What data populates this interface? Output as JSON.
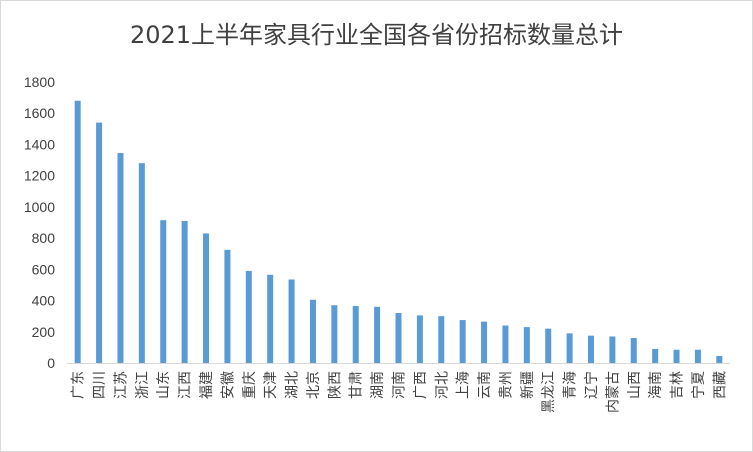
{
  "chart_data": {
    "type": "bar",
    "title": "2021上半年家具行业全国各省份招标数量总计",
    "xlabel": "",
    "ylabel": "",
    "ylim": [
      0,
      1800
    ],
    "yticks": [
      0,
      200,
      400,
      600,
      800,
      1000,
      1200,
      1400,
      1600,
      1800
    ],
    "grid": false,
    "legend": "none",
    "bar_color": "#5b9bd5",
    "categories": [
      "广东",
      "四川",
      "江苏",
      "浙江",
      "山东",
      "江西",
      "福建",
      "安徽",
      "重庆",
      "天津",
      "湖北",
      "北京",
      "陕西",
      "甘肃",
      "湖南",
      "河南",
      "广西",
      "河北",
      "上海",
      "云南",
      "贵州",
      "新疆",
      "黑龙江",
      "青海",
      "辽宁",
      "内蒙古",
      "山西",
      "海南",
      "吉林",
      "宁夏",
      "西藏"
    ],
    "values": [
      1680,
      1540,
      1345,
      1280,
      915,
      910,
      830,
      725,
      590,
      565,
      535,
      405,
      370,
      365,
      360,
      320,
      305,
      300,
      275,
      265,
      240,
      230,
      220,
      190,
      175,
      170,
      160,
      90,
      85,
      85,
      45
    ]
  }
}
